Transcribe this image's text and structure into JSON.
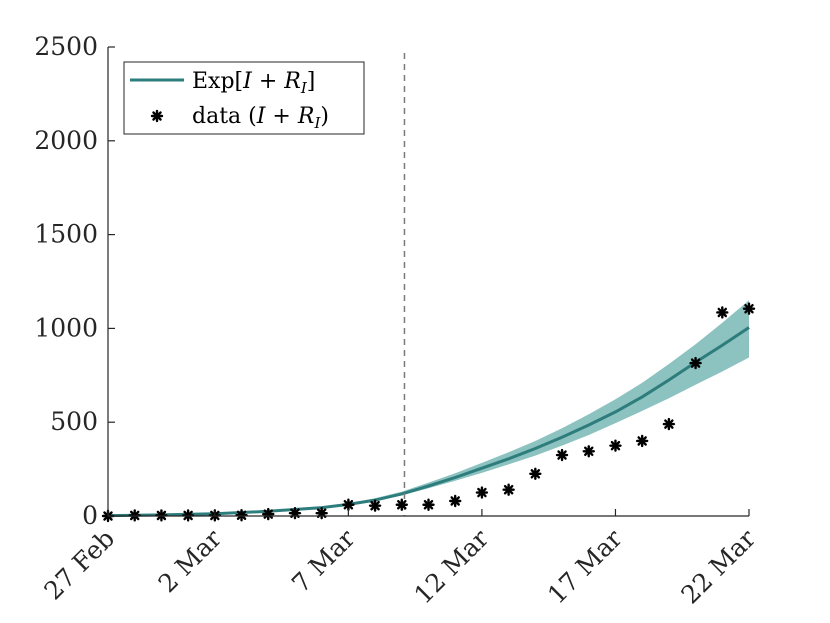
{
  "chart_data": {
    "type": "line",
    "title": "",
    "xlabel": "",
    "ylabel": "",
    "x_range_days": [
      0,
      24
    ],
    "ylim": [
      0,
      2500
    ],
    "y_ticks": [
      0,
      500,
      1000,
      1500,
      2000,
      2500
    ],
    "y_tick_labels": [
      "0",
      "500",
      "1000",
      "1500",
      "2000",
      "2500"
    ],
    "x_ticks_days": [
      0,
      4,
      9,
      14,
      19,
      24
    ],
    "x_tick_labels": [
      "27 Feb",
      "2 Mar",
      "7 Mar",
      "12 Mar",
      "17 Mar",
      "22 Mar"
    ],
    "vertical_dashed_line_day": 11.1,
    "legend": {
      "position": "top-left",
      "entries": [
        "Exp[I + R_I]",
        "data (I + R_I)"
      ]
    },
    "series": [
      {
        "name": "Exp[I + R_I]",
        "kind": "mean-with-band",
        "color": "#2e7d7d",
        "band_color": "#8cc2bf",
        "x": [
          0,
          2,
          4,
          6,
          8,
          9,
          10,
          11,
          12,
          13,
          14,
          15,
          16,
          17,
          18,
          19,
          20,
          21,
          22,
          23,
          24
        ],
        "mean": [
          2,
          6,
          12,
          25,
          45,
          62,
          85,
          118,
          160,
          205,
          255,
          305,
          360,
          420,
          485,
          555,
          635,
          725,
          820,
          910,
          1005
        ],
        "lower": [
          2,
          5,
          10,
          22,
          42,
          58,
          80,
          110,
          148,
          188,
          230,
          275,
          322,
          375,
          432,
          495,
          560,
          628,
          700,
          770,
          845
        ],
        "upper": [
          2,
          7,
          14,
          28,
          50,
          68,
          95,
          130,
          178,
          228,
          283,
          340,
          400,
          468,
          542,
          622,
          710,
          810,
          915,
          1030,
          1150
        ]
      },
      {
        "name": "data (I + R_I)",
        "kind": "scatter",
        "marker": "asterisk",
        "color": "#000000",
        "x": [
          0,
          1,
          2,
          3,
          4,
          5,
          6,
          7,
          8,
          9,
          10,
          11,
          12,
          13,
          14,
          15,
          16,
          17,
          18,
          19,
          20,
          21,
          22,
          23,
          24
        ],
        "values": [
          0,
          3,
          3,
          3,
          3,
          4,
          10,
          15,
          15,
          60,
          55,
          60,
          60,
          80,
          125,
          140,
          225,
          325,
          345,
          375,
          400,
          490,
          815,
          1085,
          1105
        ]
      }
    ]
  }
}
